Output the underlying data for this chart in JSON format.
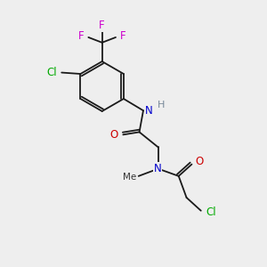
{
  "background_color": "#eeeeee",
  "atom_colors": {
    "N": "#0000cc",
    "O": "#cc0000",
    "Cl": "#00aa00",
    "F": "#cc00cc",
    "H": "#778899"
  },
  "bond_color": "#1a1a1a",
  "lw": 1.3
}
